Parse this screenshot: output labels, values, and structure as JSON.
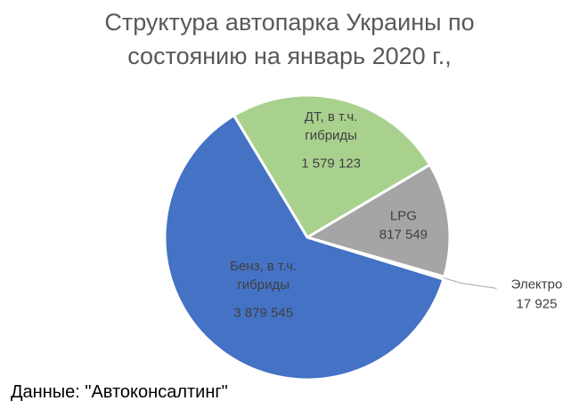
{
  "chart_data": {
    "type": "pie",
    "title": "Структура автопарка Украины по состоянию на январь 2020 г.,",
    "categories": [
      "ДТ, в т.ч. гибриды",
      "LPG",
      "Электро",
      "Бенз, в т.ч. гибриды"
    ],
    "values": [
      1579123,
      817549,
      17925,
      3879545
    ],
    "value_labels": [
      "1 579 123",
      "817 549",
      "17 925",
      "3 879 545"
    ],
    "colors": [
      "#a9d18e",
      "#a5a5a5",
      "#5b9bd5",
      "#4472c4"
    ],
    "source": "Данные: \"Автоконсалтинг\""
  }
}
